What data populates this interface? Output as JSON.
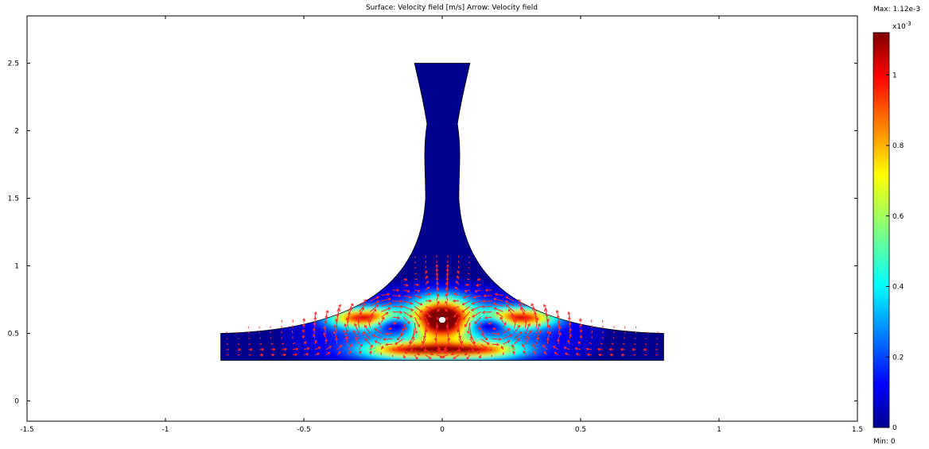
{
  "chart_data": {
    "type": "heatmap",
    "title": "Surface: Velocity field [m/s]   Arrow: Velocity field",
    "xlim": [
      -1.5,
      1.5
    ],
    "ylim": [
      -0.15,
      2.85
    ],
    "x_ticks": [
      -1.5,
      -1,
      -0.5,
      0,
      0.5,
      1,
      1.5
    ],
    "x_tick_labels": [
      "-1.5",
      "-1",
      "-0.5",
      "0",
      "0.5",
      "1",
      "1.5"
    ],
    "y_ticks": [
      0,
      0.5,
      1,
      1.5,
      2,
      2.5
    ],
    "y_tick_labels": [
      "0",
      "0.5",
      "1",
      "1.5",
      "2",
      "2.5"
    ],
    "grid": false,
    "geometry": {
      "bottom_left": [
        -0.8,
        0.3
      ],
      "bottom_right": [
        0.8,
        0.3
      ],
      "top_y": 2.5,
      "top_half_width": 0.1,
      "neck_half_width": 0.055,
      "shoulder_y": 0.5,
      "obstacle_center": [
        0,
        0.6
      ]
    },
    "colorbar": {
      "max_label": "Max: 1.12e-3",
      "min_label": "Min: 0",
      "exponent": "x10",
      "exponent_sup": "-3",
      "range": [
        0,
        1.12
      ],
      "ticks": [
        0,
        0.2,
        0.4,
        0.6,
        0.8,
        1
      ],
      "tick_labels": [
        "0",
        "0.2",
        "0.4",
        "0.6",
        "0.8",
        "1"
      ],
      "colormap": "jet"
    },
    "hotspots": [
      {
        "x": 0.0,
        "y": 0.62,
        "value": 1.12,
        "sx": 0.085,
        "sy": 0.12
      },
      {
        "x": -0.28,
        "y": 0.62,
        "value": 0.9,
        "sx": 0.11,
        "sy": 0.06
      },
      {
        "x": 0.28,
        "y": 0.62,
        "value": 0.9,
        "sx": 0.11,
        "sy": 0.06
      },
      {
        "x": -0.12,
        "y": 0.38,
        "value": 0.72,
        "sx": 0.14,
        "sy": 0.05
      },
      {
        "x": 0.12,
        "y": 0.38,
        "value": 0.72,
        "sx": 0.14,
        "sy": 0.05
      }
    ],
    "vortex_centers": [
      {
        "x": -0.17,
        "y": 0.56,
        "value": 0.15
      },
      {
        "x": 0.17,
        "y": 0.56,
        "value": 0.15
      }
    ],
    "arrow_color": "#ff2a2a",
    "border_color": "#000000"
  }
}
